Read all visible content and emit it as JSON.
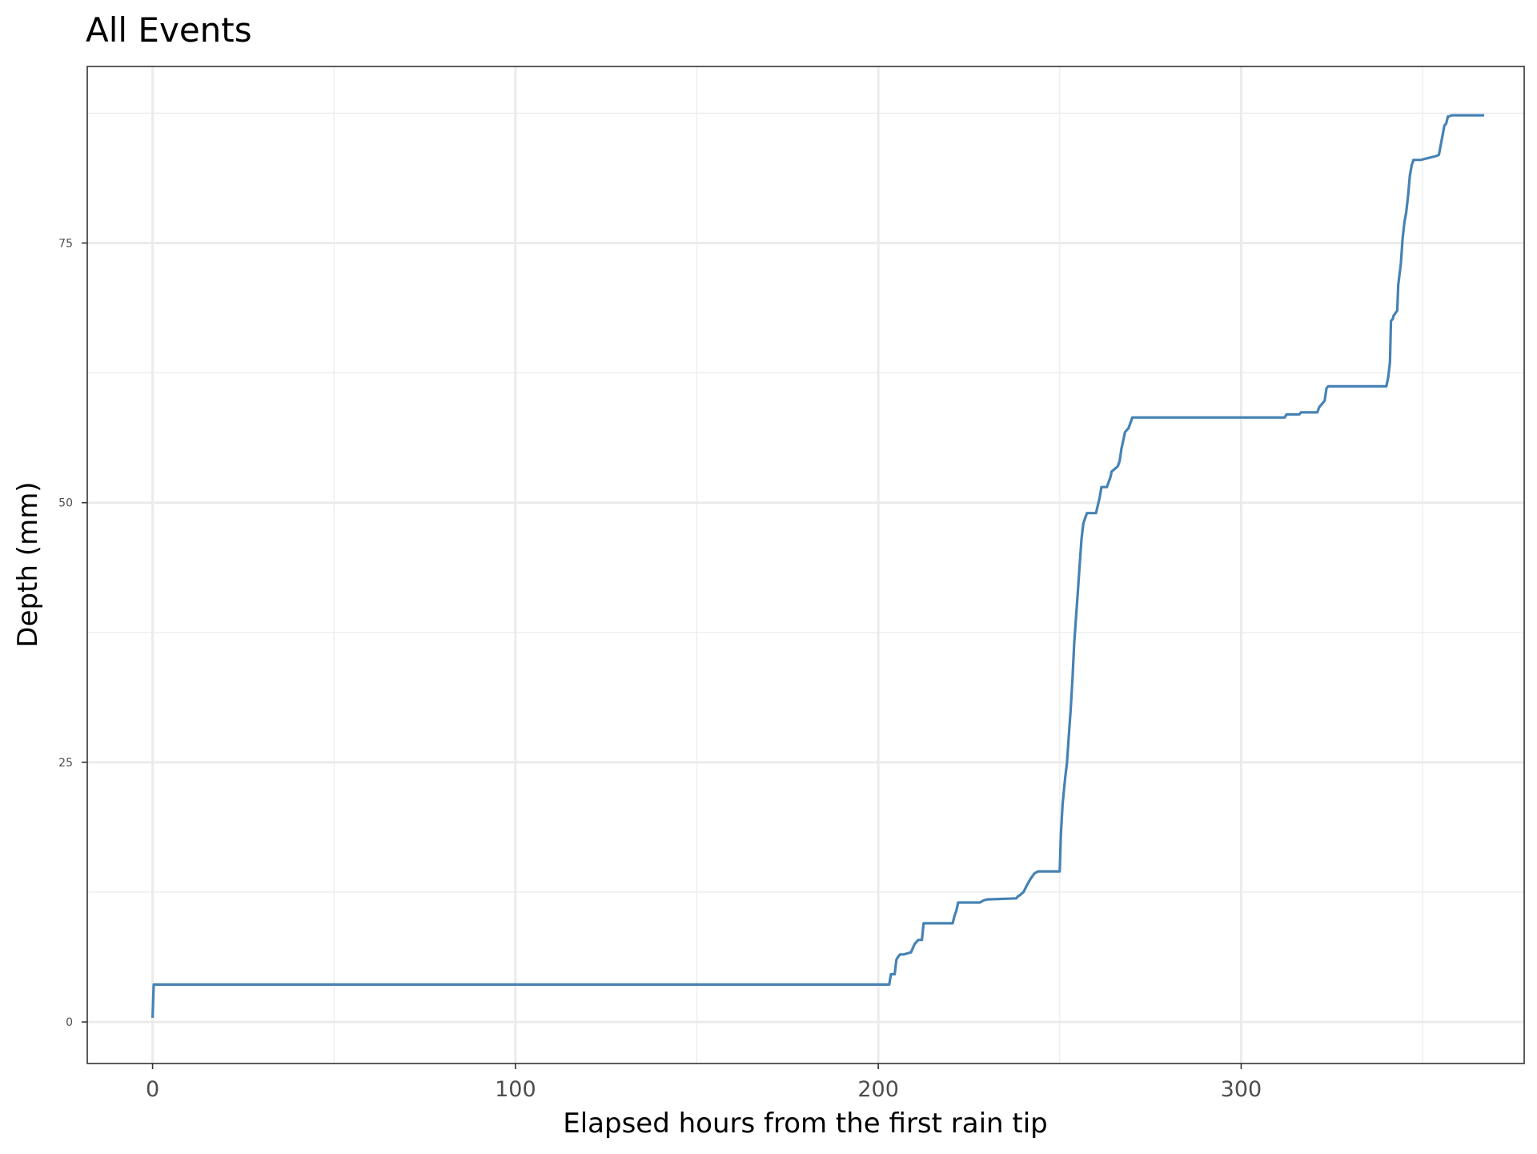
{
  "chart_data": {
    "type": "line",
    "title": "All Events",
    "xlabel": "Elapsed hours from the first rain tip",
    "ylabel": "Depth (mm)",
    "xlim": [
      -18,
      378
    ],
    "ylim": [
      -4,
      92
    ],
    "x_ticks": [
      0,
      100,
      200,
      300
    ],
    "x_tick_labels": [
      "0",
      "100",
      "200",
      "300"
    ],
    "y_ticks": [
      0,
      25,
      50,
      75
    ],
    "y_tick_labels": [
      "0",
      "25",
      "50",
      "75"
    ],
    "x_minor_grid": [
      50,
      150,
      250,
      350
    ],
    "y_minor_grid": [
      12.5,
      37.5,
      62.5,
      87.5
    ],
    "grid": true,
    "legend": "none",
    "series_color": "#4682b4",
    "grid_color": "#ebebeb",
    "panel_border_color": "#333333",
    "series": [
      {
        "x": [
          0,
          0.3,
          0.5,
          203,
          203.5,
          204.5,
          205,
          205.5,
          206,
          207,
          208,
          209,
          210,
          211,
          212,
          212.5,
          220.5,
          221,
          221.5,
          222,
          228,
          229,
          230,
          238,
          238.5,
          239,
          240,
          241,
          242,
          243,
          244,
          245,
          246,
          247,
          248,
          249,
          250,
          250.3,
          250.8,
          251.5,
          252,
          252.5,
          253,
          253.5,
          254,
          254.5,
          255,
          255.5,
          256,
          256.5,
          257,
          257.5,
          258,
          258.5,
          259,
          260,
          261,
          261.5,
          262,
          262.3,
          263,
          264,
          264.3,
          265,
          266,
          266.5,
          267,
          268,
          268.5,
          269,
          270,
          271,
          272,
          312,
          312.5,
          316,
          316.5,
          321,
          321.5,
          322,
          322.5,
          323,
          323.5,
          324,
          340,
          340.5,
          341,
          341.3,
          341.8,
          342,
          343,
          343.3,
          344,
          344.5,
          345,
          345.5,
          346,
          346.5,
          347,
          347.5,
          348,
          348.5,
          349,
          349.5,
          354,
          354.5,
          356,
          356.5,
          357,
          357.3,
          358,
          358.5,
          367
        ],
        "y": [
          0.4,
          3.6,
          3.6,
          3.6,
          4.6,
          4.6,
          6,
          6.3,
          6.5,
          6.5,
          6.6,
          6.7,
          7.5,
          7.9,
          7.9,
          9.5,
          9.5,
          10.2,
          10.7,
          11.5,
          11.5,
          11.7,
          11.8,
          11.9,
          12.1,
          12.2,
          12.5,
          13.2,
          13.8,
          14.3,
          14.5,
          14.5,
          14.5,
          14.5,
          14.5,
          14.5,
          14.5,
          18,
          21,
          23.5,
          25,
          27.5,
          30,
          33,
          36.5,
          39,
          41.5,
          44,
          46.5,
          48,
          48.5,
          49,
          49,
          49,
          49,
          49,
          50.5,
          51.5,
          51.5,
          51.5,
          51.5,
          52.5,
          53,
          53.2,
          53.5,
          54,
          55.2,
          56.8,
          57,
          57.2,
          58.2,
          58.2,
          58.2,
          58.2,
          58.5,
          58.5,
          58.7,
          58.7,
          59.2,
          59.4,
          59.6,
          59.8,
          61,
          61.2,
          61.2,
          62,
          63.5,
          67.5,
          67.7,
          68,
          68.5,
          71,
          73,
          75.5,
          77,
          78,
          79.5,
          81.5,
          82.5,
          83,
          83,
          83,
          83,
          83,
          83.4,
          83.5,
          86.3,
          86.5,
          87.2,
          87.2,
          87.3,
          87.3,
          87.3
        ]
      }
    ]
  }
}
